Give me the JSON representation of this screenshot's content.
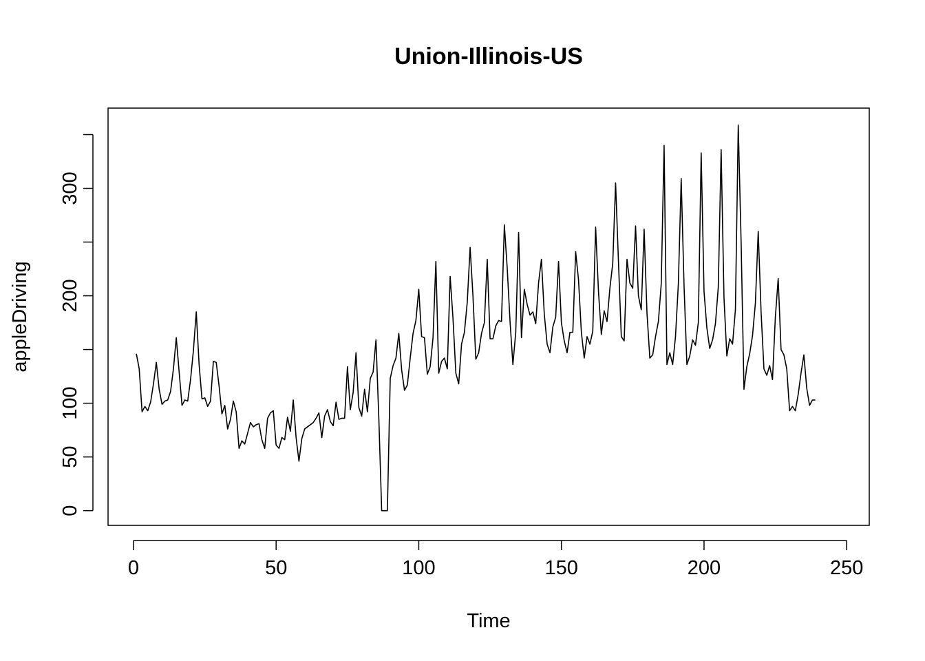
{
  "chart_data": {
    "type": "line",
    "title": "Union-Illinois-US",
    "xlabel": "Time",
    "ylabel": "appleDriving",
    "xlim": [
      -8.92,
      257.92
    ],
    "ylim": [
      -13.68,
      374.68
    ],
    "x_ticks": [
      0,
      50,
      100,
      150,
      200,
      250
    ],
    "y_ticks": [
      0,
      50,
      100,
      150,
      200,
      250,
      300,
      350
    ],
    "y_tick_labels": [
      "0",
      "50",
      "100",
      "",
      "200",
      "",
      "300",
      ""
    ],
    "grid": false,
    "legend": "none",
    "x_start": 1,
    "series": [
      {
        "values": [
          146,
          132,
          92,
          97,
          93,
          101,
          118,
          138,
          113,
          99,
          102,
          103,
          111,
          132,
          161,
          129,
          98,
          103,
          102,
          122,
          149,
          185,
          136,
          104,
          105,
          97,
          102,
          139,
          138,
          116,
          90,
          98,
          76,
          85,
          102,
          92,
          58,
          65,
          62,
          72,
          82,
          78,
          80,
          81,
          66,
          58,
          86,
          91,
          93,
          61,
          58,
          68,
          66,
          87,
          74,
          103,
          68,
          46,
          67,
          76,
          78,
          80,
          82,
          86,
          91,
          68,
          88,
          94,
          83,
          79,
          101,
          85,
          86,
          86,
          134,
          94,
          110,
          147,
          96,
          88,
          113,
          92,
          123,
          129,
          159,
          86,
          0,
          0,
          0,
          123,
          135,
          142,
          165,
          131,
          112,
          117,
          142,
          165,
          177,
          206,
          162,
          161,
          127,
          134,
          161,
          232,
          128,
          139,
          142,
          132,
          218,
          179,
          128,
          118,
          155,
          166,
          194,
          245,
          200,
          141,
          147,
          165,
          175,
          234,
          160,
          160,
          172,
          177,
          176,
          266,
          226,
          176,
          136,
          166,
          259,
          161,
          206,
          192,
          182,
          185,
          174,
          212,
          234,
          183,
          155,
          147,
          171,
          180,
          232,
          175,
          158,
          147,
          166,
          166,
          241,
          215,
          166,
          142,
          162,
          155,
          167,
          264,
          204,
          164,
          186,
          176,
          207,
          230,
          305,
          232,
          162,
          158,
          234,
          212,
          207,
          265,
          200,
          187,
          262,
          184,
          142,
          145,
          162,
          176,
          211,
          340,
          136,
          147,
          136,
          162,
          211,
          309,
          209,
          136,
          144,
          159,
          154,
          175,
          333,
          204,
          170,
          151,
          159,
          174,
          208,
          336,
          198,
          144,
          160,
          155,
          187,
          359,
          250,
          113,
          134,
          146,
          163,
          193,
          260,
          185,
          132,
          126,
          135,
          122,
          180,
          216,
          150,
          145,
          132,
          93,
          97,
          93,
          108,
          128,
          145,
          114,
          98,
          103,
          103
        ]
      }
    ]
  }
}
